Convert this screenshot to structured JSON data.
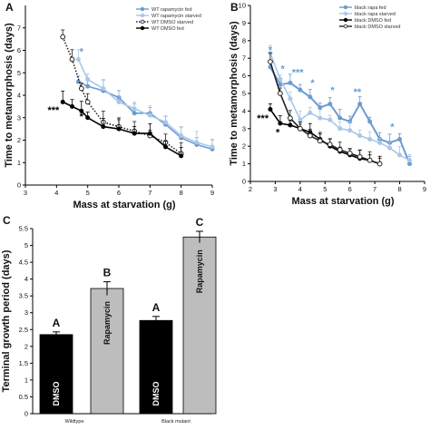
{
  "chart_data": [
    {
      "panel": "A",
      "type": "line",
      "xlabel": "Mass at starvation (g)",
      "ylabel": "Time to metamorphosis (days)",
      "xlim": [
        3,
        9
      ],
      "ylim": [
        0,
        8
      ],
      "xticks": [
        "3",
        "4",
        "5",
        "6",
        "7",
        "8",
        "9"
      ],
      "yticks": [
        "0",
        "1",
        "2",
        "3",
        "4",
        "5",
        "6",
        "7"
      ],
      "legend_position": "top-right",
      "series": [
        {
          "name": "WT rapamycin fed",
          "color": "#6b9bd2",
          "marker": "filled",
          "dash": "solid",
          "x": [
            4.7,
            5.0,
            5.5,
            6.0,
            6.5,
            7.0,
            7.5,
            8.0,
            8.5,
            9.0
          ],
          "y": [
            4.6,
            4.4,
            4.2,
            3.9,
            3.2,
            3.2,
            2.7,
            2.1,
            1.8,
            1.6
          ]
        },
        {
          "name": "WT rapamycin starved",
          "color": "#a9c7e8",
          "marker": "filled",
          "dash": "solid",
          "x": [
            4.7,
            5.0,
            5.5,
            6.0,
            6.5,
            7.0,
            7.5,
            8.0,
            8.5,
            9.0
          ],
          "y": [
            5.6,
            4.7,
            4.3,
            3.7,
            3.4,
            3.1,
            2.8,
            2.2,
            1.9,
            1.7
          ]
        },
        {
          "name": "WT DMSO starved",
          "color": "#222222",
          "marker": "open",
          "dash": "dotted",
          "x": [
            4.2,
            4.5,
            4.8,
            5.0,
            5.5,
            6.0,
            6.5,
            7.0,
            7.5,
            8.0
          ],
          "y": [
            6.6,
            5.6,
            4.3,
            3.7,
            2.8,
            2.6,
            2.4,
            2.2,
            1.9,
            1.4
          ]
        },
        {
          "name": "WT DMSO fed",
          "color": "#000000",
          "marker": "filled",
          "dash": "solid",
          "x": [
            4.2,
            4.5,
            4.8,
            5.0,
            5.5,
            6.0,
            6.5,
            7.0,
            7.5,
            8.0
          ],
          "y": [
            3.7,
            3.5,
            3.3,
            3.0,
            2.6,
            2.5,
            2.3,
            2.3,
            1.7,
            1.3
          ]
        }
      ],
      "annotations": [
        {
          "text": "*",
          "x": 4.8,
          "y": 5.8,
          "color": "#6b9bd2"
        },
        {
          "text": "***",
          "x": 3.9,
          "y": 3.2,
          "color": "#000000"
        },
        {
          "text": "*",
          "x": 4.8,
          "y": 2.9,
          "color": "#000000"
        }
      ]
    },
    {
      "panel": "B",
      "type": "line",
      "xlabel": "Mass at starvation (g)",
      "ylabel": "Time to metamorphosis (days)",
      "xlim": [
        2,
        9
      ],
      "ylim": [
        0,
        10
      ],
      "xticks": [
        "2",
        "3",
        "4",
        "5",
        "6",
        "7",
        "8",
        "9"
      ],
      "yticks": [
        "0",
        "1",
        "2",
        "3",
        "4",
        "5",
        "6",
        "7",
        "8",
        "9",
        "10"
      ],
      "legend_position": "top-right",
      "series": [
        {
          "name": "black rapa fed",
          "color": "#6b9bd2",
          "marker": "filled",
          "dash": "solid",
          "x": [
            2.8,
            3.2,
            3.6,
            4.0,
            4.4,
            4.8,
            5.2,
            5.6,
            6.0,
            6.4,
            6.8,
            7.2,
            7.6,
            8.0,
            8.4
          ],
          "y": [
            6.5,
            5.5,
            5.6,
            5.2,
            4.8,
            4.2,
            4.4,
            3.6,
            3.4,
            4.4,
            3.4,
            2.4,
            2.2,
            2.4,
            1.0
          ]
        },
        {
          "name": "black rapa starved",
          "color": "#a9c7e8",
          "marker": "filled",
          "dash": "solid",
          "x": [
            2.8,
            3.2,
            3.6,
            4.0,
            4.4,
            4.8,
            5.2,
            5.6,
            6.0,
            6.4,
            6.8,
            7.2,
            7.6,
            8.0,
            8.4
          ],
          "y": [
            7.3,
            5.8,
            4.7,
            3.5,
            3.9,
            3.6,
            3.5,
            3.0,
            2.9,
            2.6,
            2.4,
            2.2,
            1.9,
            1.5,
            1.2
          ]
        },
        {
          "name": "black DMSO fed",
          "color": "#000000",
          "marker": "filled",
          "dash": "solid",
          "x": [
            2.8,
            3.2,
            3.6,
            4.0,
            4.4,
            4.8,
            5.2,
            5.6,
            6.0,
            6.4,
            6.8,
            7.2
          ],
          "y": [
            4.1,
            3.3,
            3.2,
            3.0,
            2.8,
            2.4,
            2.0,
            1.7,
            1.5,
            1.3,
            1.2,
            1.0
          ]
        },
        {
          "name": "black DMSO starved",
          "color": "#222222",
          "marker": "open",
          "dash": "solid",
          "x": [
            2.8,
            3.2,
            3.6,
            4.0,
            4.4,
            4.8,
            5.2,
            5.6,
            6.0,
            6.4,
            6.8,
            7.2
          ],
          "y": [
            6.8,
            5.0,
            3.6,
            3.0,
            2.6,
            2.3,
            2.1,
            1.8,
            1.6,
            1.4,
            1.2,
            1.0
          ]
        }
      ],
      "annotations": [
        {
          "text": "*",
          "x": 2.8,
          "y": 7.3,
          "color": "#6b9bd2"
        },
        {
          "text": "*",
          "x": 3.3,
          "y": 6.2,
          "color": "#6b9bd2"
        },
        {
          "text": "***",
          "x": 3.9,
          "y": 6.0,
          "color": "#6b9bd2"
        },
        {
          "text": "*",
          "x": 4.5,
          "y": 5.4,
          "color": "#6b9bd2"
        },
        {
          "text": "*",
          "x": 5.3,
          "y": 5.0,
          "color": "#6b9bd2"
        },
        {
          "text": "**",
          "x": 6.3,
          "y": 4.9,
          "color": "#6b9bd2"
        },
        {
          "text": "*",
          "x": 7.7,
          "y": 2.9,
          "color": "#6b9bd2"
        },
        {
          "text": "***",
          "x": 2.5,
          "y": 3.4,
          "color": "#000000"
        },
        {
          "text": "*",
          "x": 3.1,
          "y": 2.6,
          "color": "#000000"
        }
      ]
    },
    {
      "panel": "C",
      "type": "bar",
      "ylabel": "Terminal growth period (days)",
      "ylim": [
        0,
        5.5
      ],
      "yticks": [
        "0",
        "0.5",
        "1",
        "1.5",
        "2",
        "2.5",
        "3",
        "3.5",
        "4",
        "4.5",
        "5",
        "5.5"
      ],
      "groups": [
        "Wildtype",
        "Black mutant"
      ],
      "bars": [
        {
          "group": "Wildtype",
          "label": "DMSO",
          "value": 2.35,
          "error": 0.08,
          "color": "#000000",
          "letter": "A"
        },
        {
          "group": "Wildtype",
          "label": "Rapamycin",
          "value": 3.72,
          "error": 0.2,
          "color": "#bdbdbd",
          "letter": "B"
        },
        {
          "group": "Black mutant",
          "label": "DMSO",
          "value": 2.77,
          "error": 0.12,
          "color": "#000000",
          "letter": "A"
        },
        {
          "group": "Black mutant",
          "label": "Rapamycin",
          "value": 5.25,
          "error": 0.17,
          "color": "#bdbdbd",
          "letter": "C"
        }
      ]
    }
  ]
}
